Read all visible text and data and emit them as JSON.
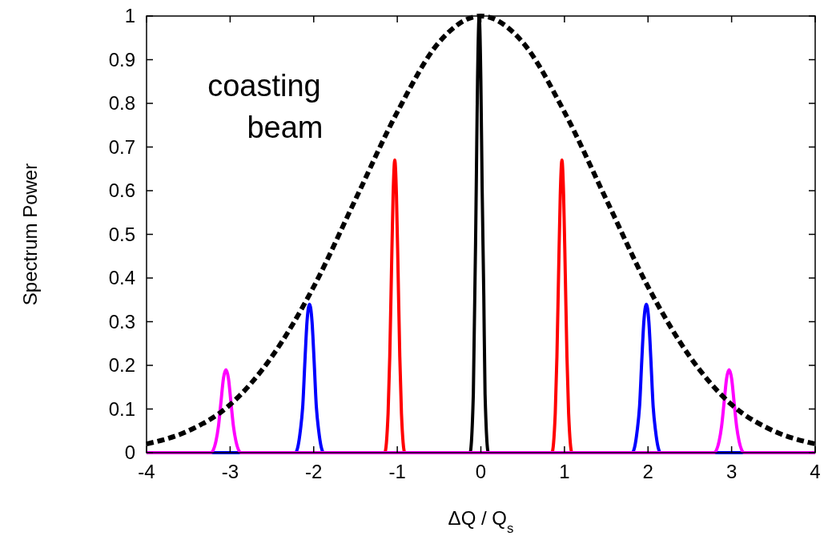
{
  "chart_data": {
    "type": "line",
    "xlabel": "ΔQ / Q$_{s}$",
    "ylabel": "Spectrum Power",
    "xlim": [
      -4,
      4
    ],
    "ylim": [
      0,
      1
    ],
    "xticks": [
      -4,
      -3,
      -2,
      -1,
      0,
      1,
      2,
      3,
      4
    ],
    "yticks": [
      0,
      0.1,
      0.2,
      0.3,
      0.4,
      0.5,
      0.6,
      0.7,
      0.8,
      0.9,
      1
    ],
    "grid": false,
    "marker": "none",
    "annotations": [
      "coasting beam"
    ],
    "series": [
      {
        "color": "#000000",
        "line_style": "solid",
        "x": [
          -4,
          -0.13,
          -0.09,
          -0.055,
          -0.04,
          -0.02,
          0,
          0.015,
          0.035,
          0.05,
          0.09,
          4
        ],
        "values": [
          0,
          0,
          0.135,
          0.61,
          0.85,
          1,
          0.85,
          0.61,
          0.36,
          0.135,
          0,
          0
        ]
      },
      {
        "color": "#ff0000",
        "line_style": "solid",
        "x": [
          -4,
          -1.15,
          -1.11,
          -1.09,
          -1.07,
          -1.05,
          -1.03,
          -1.01,
          -0.99,
          -0.97,
          -0.95,
          -0.91,
          0.85,
          0.89,
          0.91,
          0.93,
          0.95,
          0.97,
          0.99,
          1.01,
          1.03,
          1.05,
          1.09,
          4
        ],
        "values": [
          0,
          0,
          0.09,
          0.22,
          0.41,
          0.59,
          0.67,
          0.59,
          0.41,
          0.22,
          0.09,
          0,
          0,
          0.09,
          0.22,
          0.41,
          0.59,
          0.67,
          0.59,
          0.41,
          0.22,
          0.09,
          0,
          0
        ]
      },
      {
        "color": "#0000ff",
        "line_style": "solid",
        "x": [
          -4,
          -2.22,
          -2.16,
          -2.13,
          -2.105,
          -2.08,
          -2.05,
          -2.02,
          -1.995,
          -1.97,
          -1.94,
          -1.88,
          1.81,
          1.87,
          1.9,
          1.925,
          1.95,
          1.98,
          2.01,
          2.035,
          2.06,
          2.09,
          2.15,
          4
        ],
        "values": [
          0,
          0,
          0.05,
          0.11,
          0.21,
          0.3,
          0.34,
          0.3,
          0.21,
          0.11,
          0.05,
          0,
          0,
          0.05,
          0.11,
          0.21,
          0.3,
          0.34,
          0.3,
          0.21,
          0.11,
          0.05,
          0,
          0
        ]
      },
      {
        "color": "#ff00ff",
        "line_style": "solid",
        "x": [
          -4,
          -3.23,
          -3.17,
          -3.14,
          -3.11,
          -3.08,
          -3.05,
          -3.02,
          -2.99,
          -2.96,
          -2.93,
          -2.87,
          2.79,
          2.85,
          2.88,
          2.91,
          2.94,
          2.97,
          3.0,
          3.03,
          3.06,
          3.09,
          3.15,
          4
        ],
        "values": [
          0,
          0,
          0.026,
          0.06,
          0.115,
          0.17,
          0.19,
          0.17,
          0.115,
          0.06,
          0.026,
          0,
          0,
          0.026,
          0.06,
          0.115,
          0.17,
          0.19,
          0.17,
          0.115,
          0.06,
          0.026,
          0,
          0
        ]
      },
      {
        "color": "#000000",
        "line_style": "dashed",
        "x": [
          -4,
          -3.5,
          -3,
          -2.5,
          -2,
          -1.5,
          -1,
          -0.5,
          0,
          0.5,
          1,
          1.5,
          2,
          2.5,
          3,
          3.5,
          4
        ],
        "values": [
          0.02,
          0.05,
          0.11,
          0.22,
          0.38,
          0.58,
          0.78,
          0.94,
          1,
          0.94,
          0.78,
          0.58,
          0.38,
          0.22,
          0.11,
          0.05,
          0.02
        ]
      }
    ]
  }
}
